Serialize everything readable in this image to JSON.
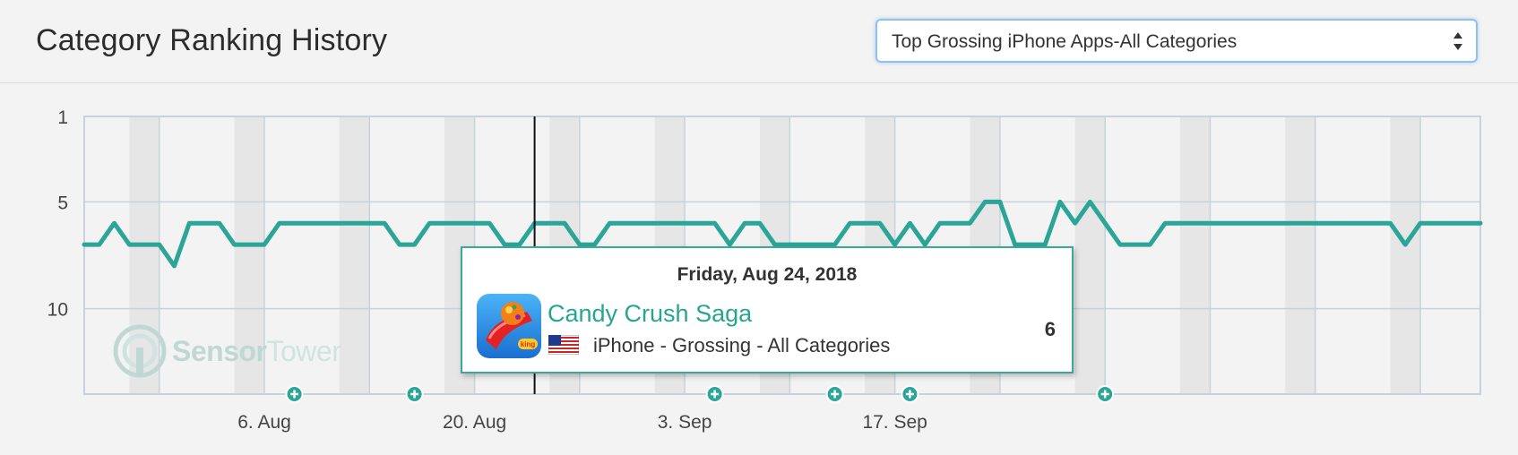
{
  "header": {
    "title": "Category Ranking History",
    "select_value": "Top Grossing iPhone Apps-All Categories"
  },
  "tooltip": {
    "date": "Friday, Aug 24, 2018",
    "app_name": "Candy Crush Saga",
    "subtitle": "iPhone - Grossing - All Categories",
    "rank": "6"
  },
  "watermark": {
    "part1": "Sensor",
    "part2": "Tower"
  },
  "colors": {
    "line": "#2ba597",
    "accent": "#27a594",
    "select_border": "#8fc1f0"
  },
  "icons": [
    "chevron-up-down-icon",
    "us-flag-icon",
    "candy-crush-app-icon",
    "sensor-tower-logo-icon",
    "plus-circle-icon"
  ],
  "chart_data": {
    "type": "line",
    "y_axis": {
      "reversed": true,
      "ticks": [
        1,
        5,
        10
      ],
      "range": [
        1,
        14
      ]
    },
    "x_ticks": [
      "6. Aug",
      "20. Aug",
      "3. Sep",
      "17. Sep"
    ],
    "x_range": [
      "2018-07-25",
      "2018-10-26"
    ],
    "series": [
      {
        "points": [
          [
            "2018-07-25",
            7
          ],
          [
            "2018-07-26",
            7
          ],
          [
            "2018-07-27",
            6
          ],
          [
            "2018-07-28",
            7
          ],
          [
            "2018-07-29",
            7
          ],
          [
            "2018-07-30",
            7
          ],
          [
            "2018-07-31",
            8
          ],
          [
            "2018-08-01",
            6
          ],
          [
            "2018-08-02",
            6
          ],
          [
            "2018-08-03",
            6
          ],
          [
            "2018-08-04",
            7
          ],
          [
            "2018-08-05",
            7
          ],
          [
            "2018-08-06",
            7
          ],
          [
            "2018-08-07",
            6
          ],
          [
            "2018-08-08",
            6
          ],
          [
            "2018-08-09",
            6
          ],
          [
            "2018-08-10",
            6
          ],
          [
            "2018-08-11",
            6
          ],
          [
            "2018-08-12",
            6
          ],
          [
            "2018-08-13",
            6
          ],
          [
            "2018-08-14",
            6
          ],
          [
            "2018-08-15",
            7
          ],
          [
            "2018-08-16",
            7
          ],
          [
            "2018-08-17",
            6
          ],
          [
            "2018-08-18",
            6
          ],
          [
            "2018-08-19",
            6
          ],
          [
            "2018-08-20",
            6
          ],
          [
            "2018-08-21",
            6
          ],
          [
            "2018-08-22",
            7
          ],
          [
            "2018-08-23",
            7
          ],
          [
            "2018-08-24",
            6
          ],
          [
            "2018-08-25",
            6
          ],
          [
            "2018-08-26",
            6
          ],
          [
            "2018-08-27",
            7
          ],
          [
            "2018-08-28",
            7
          ],
          [
            "2018-08-29",
            6
          ],
          [
            "2018-08-30",
            6
          ],
          [
            "2018-08-31",
            6
          ],
          [
            "2018-09-01",
            6
          ],
          [
            "2018-09-02",
            6
          ],
          [
            "2018-09-03",
            6
          ],
          [
            "2018-09-04",
            6
          ],
          [
            "2018-09-05",
            6
          ],
          [
            "2018-09-06",
            7
          ],
          [
            "2018-09-07",
            6
          ],
          [
            "2018-09-08",
            6
          ],
          [
            "2018-09-09",
            7
          ],
          [
            "2018-09-10",
            7
          ],
          [
            "2018-09-11",
            7
          ],
          [
            "2018-09-12",
            7
          ],
          [
            "2018-09-13",
            7
          ],
          [
            "2018-09-14",
            6
          ],
          [
            "2018-09-15",
            6
          ],
          [
            "2018-09-16",
            6
          ],
          [
            "2018-09-17",
            7
          ],
          [
            "2018-09-18",
            6
          ],
          [
            "2018-09-19",
            7
          ],
          [
            "2018-09-20",
            6
          ],
          [
            "2018-09-21",
            6
          ],
          [
            "2018-09-22",
            6
          ],
          [
            "2018-09-23",
            5
          ],
          [
            "2018-09-24",
            5
          ],
          [
            "2018-09-25",
            7
          ],
          [
            "2018-09-26",
            7
          ],
          [
            "2018-09-27",
            7
          ],
          [
            "2018-09-28",
            5
          ],
          [
            "2018-09-29",
            6
          ],
          [
            "2018-09-30",
            5
          ],
          [
            "2018-10-01",
            6
          ],
          [
            "2018-10-02",
            7
          ],
          [
            "2018-10-03",
            7
          ],
          [
            "2018-10-04",
            7
          ],
          [
            "2018-10-05",
            6
          ],
          [
            "2018-10-06",
            6
          ],
          [
            "2018-10-07",
            6
          ],
          [
            "2018-10-08",
            6
          ],
          [
            "2018-10-09",
            6
          ],
          [
            "2018-10-10",
            6
          ],
          [
            "2018-10-11",
            6
          ],
          [
            "2018-10-12",
            6
          ],
          [
            "2018-10-13",
            6
          ],
          [
            "2018-10-14",
            6
          ],
          [
            "2018-10-15",
            6
          ],
          [
            "2018-10-16",
            6
          ],
          [
            "2018-10-17",
            6
          ],
          [
            "2018-10-18",
            6
          ],
          [
            "2018-10-19",
            6
          ],
          [
            "2018-10-20",
            6
          ],
          [
            "2018-10-21",
            7
          ],
          [
            "2018-10-22",
            6
          ],
          [
            "2018-10-23",
            6
          ],
          [
            "2018-10-24",
            6
          ],
          [
            "2018-10-25",
            6
          ],
          [
            "2018-10-26",
            6
          ]
        ]
      }
    ],
    "crosshair_date": "2018-08-24",
    "event_markers": [
      "2018-08-08",
      "2018-08-16",
      "2018-09-05",
      "2018-09-13",
      "2018-09-18",
      "2018-10-01"
    ],
    "grid": true
  }
}
